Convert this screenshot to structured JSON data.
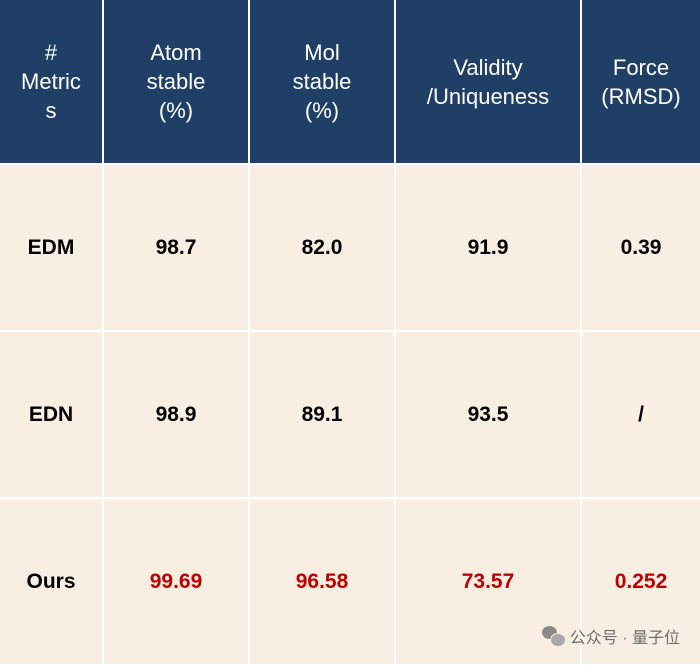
{
  "table": {
    "header": [
      "#\nMetric\ns",
      "Atom\nstable\n(%)",
      "Mol\nstable\n(%)",
      "Validity\n/Uniqueness",
      "Force\n(RMSD)"
    ],
    "rows": [
      {
        "label": "EDM",
        "atom_stable": "98.7",
        "mol_stable": "82.0",
        "validity_uniqueness": "91.9",
        "force_rmsd": "0.39"
      },
      {
        "label": "EDN",
        "atom_stable": "98.9",
        "mol_stable": "89.1",
        "validity_uniqueness": "93.5",
        "force_rmsd": "/"
      },
      {
        "label": "Ours",
        "atom_stable": "99.69",
        "mol_stable": "96.58",
        "validity_uniqueness": "73.57",
        "force_rmsd": "0.252"
      }
    ]
  },
  "watermark": {
    "text": "公众号 · 量子位"
  },
  "colors": {
    "header_bg": "#1f3f66",
    "body_bg": "#f8efe2",
    "highlight": "#c00000"
  }
}
